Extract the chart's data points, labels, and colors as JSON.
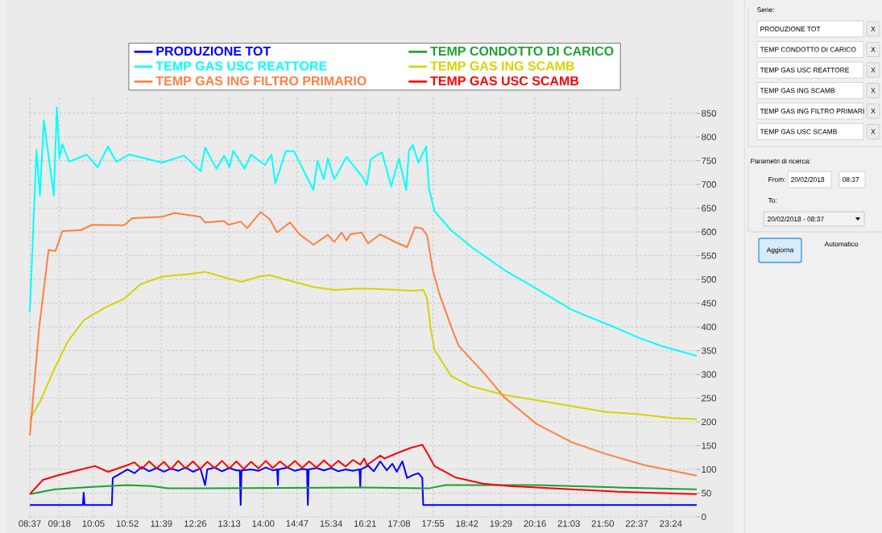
{
  "chart_data": {
    "type": "line",
    "legend": "top",
    "grid": true,
    "xlim": [
      8.6167,
      24.0
    ],
    "ylim": [
      0,
      885
    ],
    "xticks": [
      {
        "value": 8.6167,
        "label": "08:37"
      },
      {
        "value": 9.3,
        "label": "09:18"
      },
      {
        "value": 10.0833,
        "label": "10:05"
      },
      {
        "value": 10.8667,
        "label": "10:52"
      },
      {
        "value": 11.65,
        "label": "11:39"
      },
      {
        "value": 12.4333,
        "label": "12:26"
      },
      {
        "value": 13.2167,
        "label": "13:13"
      },
      {
        "value": 14.0,
        "label": "14:00"
      },
      {
        "value": 14.7833,
        "label": "14:47"
      },
      {
        "value": 15.5667,
        "label": "15:34"
      },
      {
        "value": 16.35,
        "label": "16:21"
      },
      {
        "value": 17.1333,
        "label": "17:08"
      },
      {
        "value": 17.9167,
        "label": "17:55"
      },
      {
        "value": 18.7,
        "label": "18:42"
      },
      {
        "value": 19.4833,
        "label": "19:29"
      },
      {
        "value": 20.2667,
        "label": "20:16"
      },
      {
        "value": 21.05,
        "label": "21:03"
      },
      {
        "value": 21.8333,
        "label": "21:50"
      },
      {
        "value": 22.6167,
        "label": "22:37"
      },
      {
        "value": 23.4,
        "label": "23:24"
      }
    ],
    "yticks": [
      0,
      50,
      100,
      150,
      200,
      250,
      300,
      350,
      400,
      450,
      500,
      550,
      600,
      650,
      700,
      750,
      800,
      850
    ],
    "series": [
      {
        "name": "PRODUZIONE TOT",
        "color": "#0000ff",
        "x": [
          8.617,
          9.84,
          9.86,
          9.88,
          10.51,
          10.53,
          10.87,
          11.03,
          11.2,
          11.37,
          11.54,
          11.71,
          11.87,
          12.04,
          12.21,
          12.38,
          12.55,
          12.66,
          12.71,
          12.88,
          13.05,
          13.22,
          13.38,
          13.46,
          13.48,
          13.5,
          13.72,
          13.89,
          14.06,
          14.22,
          14.32,
          14.34,
          14.35,
          14.56,
          14.73,
          14.9,
          15.01,
          15.03,
          15.05,
          15.23,
          15.4,
          15.57,
          15.73,
          15.9,
          16.07,
          16.22,
          16.24,
          16.25,
          16.42,
          16.55,
          16.7,
          16.85,
          16.98,
          17.08,
          17.21,
          17.32,
          17.45,
          17.58,
          17.67,
          17.69,
          24.0
        ],
        "values": [
          25,
          25,
          51,
          25,
          25,
          82,
          100,
          92,
          105,
          96,
          103,
          95,
          102,
          97,
          104,
          95,
          102,
          67,
          100,
          104,
          96,
          103,
          98,
          98,
          25,
          98,
          100,
          97,
          104,
          98,
          100,
          67,
          100,
          104,
          97,
          101,
          100,
          25,
          100,
          103,
          98,
          103,
          96,
          100,
          97,
          100,
          62,
          100,
          108,
          96,
          117,
          98,
          112,
          95,
          117,
          82,
          88,
          92,
          82,
          25,
          25
        ]
      },
      {
        "name": "TEMP CONDOTTO DI CARICO",
        "color": "#1ea030",
        "x": [
          8.617,
          9.19,
          10.05,
          10.87,
          11.43,
          11.8,
          16.33,
          17.82,
          18.2,
          20.3,
          22.17,
          24.0
        ],
        "values": [
          48,
          58,
          63,
          67,
          65,
          60,
          62,
          60,
          67,
          67,
          62,
          58
        ]
      },
      {
        "name": "TEMP GAS USC REATTORE",
        "color": "#00ffff",
        "x": [
          8.617,
          8.77,
          8.85,
          8.94,
          9.17,
          9.24,
          9.3,
          9.37,
          9.52,
          9.93,
          10.18,
          10.42,
          10.61,
          10.92,
          11.67,
          12.17,
          12.56,
          12.66,
          12.92,
          13.1,
          13.22,
          13.31,
          13.57,
          13.72,
          14.04,
          14.19,
          14.28,
          14.52,
          14.71,
          15.16,
          15.25,
          15.4,
          15.49,
          15.64,
          15.92,
          16.29,
          16.39,
          16.48,
          16.74,
          16.95,
          17.13,
          17.3,
          17.36,
          17.45,
          17.58,
          17.76,
          17.82,
          17.95,
          18.33,
          18.81,
          19.56,
          20.3,
          21.12,
          22.06,
          22.67,
          23.18,
          24.0
        ],
        "values": [
          431,
          772,
          677,
          835,
          677,
          862,
          755,
          785,
          748,
          763,
          736,
          780,
          748,
          763,
          746,
          761,
          728,
          778,
          733,
          761,
          736,
          771,
          733,
          763,
          741,
          763,
          702,
          770,
          770,
          688,
          750,
          711,
          755,
          711,
          758,
          716,
          699,
          753,
          768,
          696,
          755,
          688,
          771,
          783,
          746,
          780,
          694,
          644,
          604,
          568,
          520,
          481,
          436,
          401,
          377,
          360,
          339
        ]
      },
      {
        "name": "TEMP GAS ING SCAMB",
        "color": "#d4d400",
        "x": [
          8.617,
          8.87,
          9.19,
          9.49,
          9.86,
          10.05,
          10.42,
          10.79,
          11.17,
          11.67,
          12.28,
          12.66,
          13.16,
          13.5,
          13.91,
          14.15,
          14.47,
          15.16,
          15.64,
          16.29,
          16.89,
          17.45,
          17.69,
          17.78,
          17.86,
          17.95,
          18.33,
          18.76,
          19.56,
          20.3,
          21.12,
          21.92,
          22.67,
          23.42,
          24.0
        ],
        "values": [
          205,
          246,
          313,
          369,
          414,
          425,
          444,
          459,
          490,
          506,
          511,
          516,
          503,
          495,
          506,
          509,
          501,
          484,
          478,
          481,
          479,
          476,
          478,
          461,
          397,
          352,
          297,
          276,
          257,
          246,
          233,
          221,
          216,
          208,
          206
        ]
      },
      {
        "name": "TEMP GAS ING FILTRO PRIMARIO",
        "color": "#ff7f40",
        "x": [
          8.617,
          8.83,
          9.05,
          9.21,
          9.37,
          9.8,
          10.05,
          10.79,
          10.98,
          11.67,
          11.95,
          12.55,
          12.66,
          13.1,
          13.2,
          13.48,
          13.63,
          13.94,
          14.15,
          14.32,
          14.62,
          14.84,
          15.16,
          15.49,
          15.64,
          15.81,
          15.92,
          16.01,
          16.27,
          16.42,
          16.7,
          17.04,
          17.32,
          17.5,
          17.67,
          17.78,
          17.91,
          18.07,
          18.35,
          18.51,
          19.07,
          19.56,
          20.3,
          21.12,
          21.92,
          22.8,
          24.0
        ],
        "values": [
          171,
          397,
          562,
          560,
          602,
          604,
          615,
          614,
          629,
          632,
          640,
          632,
          620,
          623,
          615,
          622,
          608,
          642,
          627,
          599,
          620,
          595,
          573,
          594,
          579,
          599,
          582,
          595,
          599,
          576,
          595,
          579,
          568,
          610,
          607,
          593,
          520,
          468,
          397,
          360,
          305,
          252,
          196,
          157,
          132,
          109,
          87
        ]
      },
      {
        "name": "TEMP GAS USC SCAMB",
        "color": "#ff0000",
        "x": [
          8.617,
          8.92,
          9.24,
          9.8,
          10.12,
          10.42,
          10.87,
          11.03,
          11.2,
          11.37,
          11.54,
          11.71,
          11.87,
          12.04,
          12.21,
          12.38,
          12.55,
          12.71,
          12.88,
          13.05,
          13.22,
          13.38,
          13.55,
          13.72,
          13.89,
          14.06,
          14.22,
          14.39,
          14.56,
          14.73,
          14.9,
          15.06,
          15.23,
          15.4,
          15.57,
          15.73,
          15.9,
          16.07,
          16.24,
          16.33,
          16.39,
          16.7,
          16.8,
          17.08,
          17.39,
          17.67,
          17.82,
          17.95,
          18.44,
          19.07,
          19.69,
          21.12,
          22.17,
          24.0
        ],
        "values": [
          48,
          78,
          87,
          100,
          107,
          95,
          109,
          115,
          101,
          117,
          102,
          116,
          100,
          118,
          102,
          117,
          101,
          116,
          103,
          118,
          102,
          117,
          101,
          116,
          102,
          118,
          103,
          117,
          104,
          118,
          103,
          117,
          104,
          119,
          105,
          118,
          106,
          120,
          110,
          123,
          109,
          129,
          123,
          134,
          145,
          152,
          129,
          107,
          83,
          70,
          65,
          58,
          53,
          48
        ]
      }
    ],
    "annotations": [
      "Serie:",
      "PRODUZIONE TOT",
      "TEMP CONDOTTO DI CARICO",
      "TEMP GAS USC REATTORE",
      "TEMP GAS ING SCAMB",
      "TEMP GAS ING FILTRO PRIMARI",
      "TEMP GAS USC SCAMB",
      "X",
      "X",
      "X",
      "X",
      "X",
      "X",
      "Parametri di ricerca:",
      "From:",
      "20/02/2018",
      "08:37",
      "To:",
      "20/02/2018 - 08:37",
      "Aggiorna",
      "Automatico"
    ]
  }
}
